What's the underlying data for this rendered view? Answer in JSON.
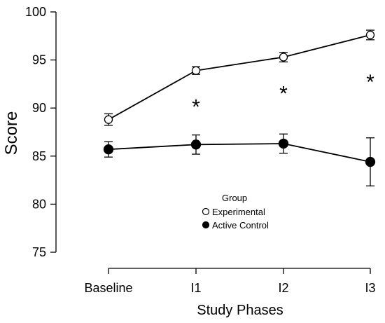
{
  "chart_data": {
    "type": "line",
    "title": "",
    "xlabel": "Study Phases",
    "ylabel": "Score",
    "categories": [
      "Baseline",
      "I1",
      "I2",
      "I3"
    ],
    "ylim": [
      75,
      100
    ],
    "yticks": [
      "75",
      "80",
      "85",
      "90",
      "95",
      "100"
    ],
    "grid": false,
    "legend": {
      "title": "Group",
      "placement": "center",
      "entries": [
        "Experimental",
        "Active Control"
      ]
    },
    "series": [
      {
        "name": "Experimental",
        "marker": "open-circle",
        "values": [
          88.8,
          93.9,
          95.3,
          97.6
        ],
        "error": [
          0.6,
          0.4,
          0.5,
          0.5
        ]
      },
      {
        "name": "Active Control",
        "marker": "filled-circle",
        "values": [
          85.7,
          86.2,
          86.3,
          84.4
        ],
        "error": [
          0.8,
          1.0,
          1.0,
          2.5
        ]
      }
    ],
    "annotations": [
      {
        "text": "*",
        "category": "I1",
        "y": 90.4
      },
      {
        "text": "*",
        "category": "I2",
        "y": 91.8
      },
      {
        "text": "*",
        "category": "I3",
        "y": 93.0
      }
    ]
  }
}
